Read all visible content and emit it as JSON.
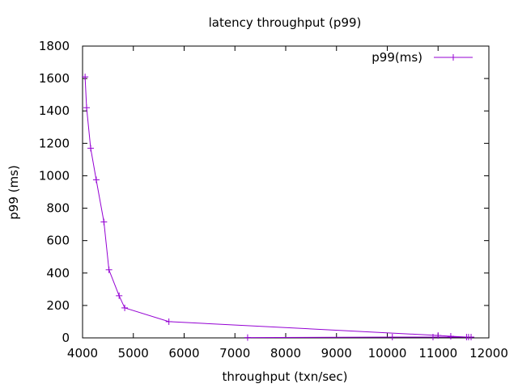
{
  "chart_data": {
    "type": "line",
    "title": "latency throughput (p99)",
    "xlabel": "throughput (txn/sec)",
    "ylabel": "p99 (ms)",
    "xlim": [
      4000,
      12000
    ],
    "ylim": [
      0,
      1800
    ],
    "xticks": [
      4000,
      5000,
      6000,
      7000,
      8000,
      9000,
      10000,
      11000,
      12000
    ],
    "yticks": [
      0,
      200,
      400,
      600,
      800,
      1000,
      1200,
      1400,
      1600,
      1800
    ],
    "grid": false,
    "legend_position": "top-right",
    "series": [
      {
        "name": "p99(ms)",
        "color": "#9400d3",
        "marker": "plus",
        "points": [
          [
            4050,
            1610
          ],
          [
            4080,
            1420
          ],
          [
            4160,
            1170
          ],
          [
            4270,
            975
          ],
          [
            4420,
            715
          ],
          [
            4520,
            420
          ],
          [
            4720,
            260
          ],
          [
            4830,
            185
          ],
          [
            5700,
            100
          ],
          [
            11000,
            15
          ],
          [
            11250,
            10
          ],
          [
            11560,
            5
          ],
          [
            11600,
            5
          ],
          [
            11650,
            5
          ],
          [
            10900,
            5
          ],
          [
            10100,
            5
          ],
          [
            7250,
            2
          ]
        ]
      }
    ]
  }
}
